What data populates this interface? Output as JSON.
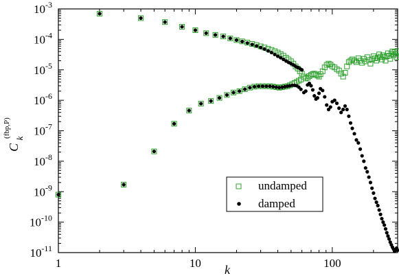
{
  "chart_data": {
    "type": "scatter",
    "title": "",
    "xlabel": "k",
    "ylabel": {
      "main": "C",
      "subscript": "k",
      "superscript": "(fbp,P)"
    },
    "x_scale": "log",
    "y_scale": "log",
    "xlim": [
      1,
      300
    ],
    "ylim": [
      1e-11,
      0.001
    ],
    "x_ticks": [
      {
        "value": 1,
        "label": "1"
      },
      {
        "value": 10,
        "label": "10"
      },
      {
        "value": 100,
        "label": "100"
      }
    ],
    "y_ticks": [
      {
        "value": 0.001,
        "base": "10",
        "exp": "-3"
      },
      {
        "value": 0.0001,
        "base": "10",
        "exp": "-4"
      },
      {
        "value": 1e-05,
        "base": "10",
        "exp": "-5"
      },
      {
        "value": 1e-06,
        "base": "10",
        "exp": "-6"
      },
      {
        "value": 1e-07,
        "base": "10",
        "exp": "-7"
      },
      {
        "value": 1e-08,
        "base": "10",
        "exp": "-8"
      },
      {
        "value": 1e-09,
        "base": "10",
        "exp": "-9"
      },
      {
        "value": 1e-10,
        "base": "10",
        "exp": "-10"
      },
      {
        "value": 1e-11,
        "base": "10",
        "exp": "-11"
      }
    ],
    "grid": false,
    "legend_position": "lower-right",
    "series": [
      {
        "name": "undamped",
        "marker": "open-square",
        "color": "#2ca02c",
        "points": [
          [
            1,
            8e-10
          ],
          [
            2,
            0.0007
          ],
          [
            3,
            1.7e-09
          ],
          [
            4,
            0.0005
          ],
          [
            5,
            2.1e-08
          ],
          [
            6,
            0.00037
          ],
          [
            7,
            1.7e-07
          ],
          [
            8,
            0.00026
          ],
          [
            9,
            4.6e-07
          ],
          [
            10,
            0.0002
          ],
          [
            11,
            7.8e-07
          ],
          [
            12,
            0.00016
          ],
          [
            13,
            9.5e-07
          ],
          [
            14,
            0.00014
          ],
          [
            15,
            1.2e-06
          ],
          [
            16,
            0.000125
          ],
          [
            17,
            1.5e-06
          ],
          [
            18,
            0.000108
          ],
          [
            19,
            1.8e-06
          ],
          [
            20,
            9.5e-05
          ],
          [
            21,
            2e-06
          ],
          [
            22,
            8.6e-05
          ],
          [
            23,
            2.3e-06
          ],
          [
            24,
            7.8e-05
          ],
          [
            25,
            2.6e-06
          ],
          [
            26,
            7.1e-05
          ],
          [
            27,
            2.8e-06
          ],
          [
            28,
            6.5e-05
          ],
          [
            29,
            2.9e-06
          ],
          [
            30,
            5.9e-05
          ],
          [
            31,
            2.9e-06
          ],
          [
            32,
            5.4e-05
          ],
          [
            33,
            2.9e-06
          ],
          [
            34,
            4.9e-05
          ],
          [
            35,
            2.9e-06
          ],
          [
            36,
            4.5e-05
          ],
          [
            37,
            2.8e-06
          ],
          [
            38,
            4.1e-05
          ],
          [
            39,
            2.7e-06
          ],
          [
            40,
            3.7e-05
          ],
          [
            41,
            2.6e-06
          ],
          [
            42,
            3.3e-05
          ],
          [
            43,
            2.7e-06
          ],
          [
            44,
            2.9e-05
          ],
          [
            45,
            2.8e-06
          ],
          [
            46,
            2.5e-05
          ],
          [
            47,
            2.9e-06
          ],
          [
            48,
            2.2e-05
          ],
          [
            49,
            3.1e-06
          ],
          [
            50,
            1.9e-05
          ],
          [
            51,
            3.4e-06
          ],
          [
            52,
            1.6e-05
          ],
          [
            53,
            3.7e-06
          ],
          [
            54,
            1.3e-05
          ],
          [
            55,
            4e-06
          ],
          [
            56,
            1.1e-05
          ],
          [
            57,
            4.4e-06
          ],
          [
            58,
            9e-06
          ],
          [
            59,
            4.8e-06
          ],
          [
            60,
            7.5e-06
          ],
          [
            62,
            6e-06
          ],
          [
            64,
            5.2e-06
          ],
          [
            66,
            5.5e-06
          ],
          [
            68,
            6.2e-06
          ],
          [
            70,
            6.8e-06
          ],
          [
            72,
            7.3e-06
          ],
          [
            74,
            7.5e-06
          ],
          [
            76,
            7e-06
          ],
          [
            78,
            6.5e-06
          ],
          [
            80,
            6e-06
          ],
          [
            82,
            7.2e-06
          ],
          [
            85,
            9e-06
          ],
          [
            88,
            1.2e-05
          ],
          [
            91,
            1.45e-05
          ],
          [
            94,
            1.6e-05
          ],
          [
            97,
            1.5e-05
          ],
          [
            100,
            1.3e-05
          ],
          [
            104,
            1.2e-05
          ],
          [
            108,
            1.05e-05
          ],
          [
            112,
            9.5e-06
          ],
          [
            116,
            7.5e-06
          ],
          [
            120,
            6e-06
          ],
          [
            124,
            8e-06
          ],
          [
            128,
            1.3e-05
          ],
          [
            132,
            1.8e-05
          ],
          [
            136,
            2e-05
          ],
          [
            140,
            2.2e-05
          ],
          [
            145,
            2e-05
          ],
          [
            150,
            1.8e-05
          ],
          [
            155,
            2.4e-05
          ],
          [
            160,
            2e-05
          ],
          [
            165,
            1.7e-05
          ],
          [
            170,
            2.3e-05
          ],
          [
            175,
            1.9e-05
          ],
          [
            180,
            2.6e-05
          ],
          [
            185,
            2.1e-05
          ],
          [
            190,
            1.6e-05
          ],
          [
            195,
            2.2e-05
          ],
          [
            200,
            2.8e-05
          ],
          [
            205,
            2.4e-05
          ],
          [
            210,
            2e-05
          ],
          [
            215,
            2.5e-05
          ],
          [
            220,
            3.2e-05
          ],
          [
            225,
            2.7e-05
          ],
          [
            230,
            2.2e-05
          ],
          [
            235,
            3e-05
          ],
          [
            240,
            2.6e-05
          ],
          [
            245,
            2e-05
          ],
          [
            250,
            2.8e-05
          ],
          [
            255,
            3.5e-05
          ],
          [
            260,
            2.9e-05
          ],
          [
            265,
            2.3e-05
          ],
          [
            270,
            3.4e-05
          ],
          [
            275,
            4e-05
          ],
          [
            280,
            3e-05
          ],
          [
            285,
            3.8e-05
          ],
          [
            290,
            3.3e-05
          ],
          [
            295,
            2.6e-05
          ],
          [
            300,
            4.1e-05
          ]
        ]
      },
      {
        "name": "damped",
        "marker": "filled-circle",
        "color": "#000000",
        "points": [
          [
            1,
            8e-10
          ],
          [
            2,
            0.0007
          ],
          [
            3,
            1.7e-09
          ],
          [
            4,
            0.0005
          ],
          [
            5,
            2.1e-08
          ],
          [
            6,
            0.00037
          ],
          [
            7,
            1.7e-07
          ],
          [
            8,
            0.00026
          ],
          [
            9,
            4.6e-07
          ],
          [
            10,
            0.0002
          ],
          [
            11,
            7.8e-07
          ],
          [
            12,
            0.00016
          ],
          [
            13,
            9.5e-07
          ],
          [
            14,
            0.00014
          ],
          [
            15,
            1.2e-06
          ],
          [
            16,
            0.000125
          ],
          [
            17,
            1.5e-06
          ],
          [
            18,
            0.000108
          ],
          [
            19,
            1.8e-06
          ],
          [
            20,
            9.5e-05
          ],
          [
            21,
            2e-06
          ],
          [
            22,
            8.5e-05
          ],
          [
            23,
            2.3e-06
          ],
          [
            24,
            7.6e-05
          ],
          [
            25,
            2.6e-06
          ],
          [
            26,
            6.8e-05
          ],
          [
            27,
            2.8e-06
          ],
          [
            28,
            6.1e-05
          ],
          [
            29,
            2.9e-06
          ],
          [
            30,
            5.4e-05
          ],
          [
            31,
            2.9e-06
          ],
          [
            32,
            4.8e-05
          ],
          [
            33,
            2.9e-06
          ],
          [
            34,
            4.2e-05
          ],
          [
            35,
            2.9e-06
          ],
          [
            36,
            3.7e-05
          ],
          [
            37,
            2.8e-06
          ],
          [
            38,
            3.2e-05
          ],
          [
            39,
            2.7e-06
          ],
          [
            40,
            2.8e-05
          ],
          [
            41,
            2.6e-06
          ],
          [
            42,
            2.5e-05
          ],
          [
            43,
            2.7e-06
          ],
          [
            44,
            2.2e-05
          ],
          [
            45,
            2.8e-06
          ],
          [
            46,
            1.95e-05
          ],
          [
            47,
            2.9e-06
          ],
          [
            48,
            1.75e-05
          ],
          [
            49,
            3e-06
          ],
          [
            50,
            1.6e-05
          ],
          [
            51,
            3.1e-06
          ],
          [
            52,
            1.45e-05
          ],
          [
            53,
            3.1e-06
          ],
          [
            54,
            1.3e-05
          ],
          [
            55,
            3e-06
          ],
          [
            56,
            1.2e-05
          ],
          [
            57,
            2.7e-06
          ],
          [
            58,
            1.1e-05
          ],
          [
            59,
            2.3e-06
          ],
          [
            60,
            1e-05
          ],
          [
            62,
            1.8e-06
          ],
          [
            64,
            2e-06
          ],
          [
            66,
            3.2e-06
          ],
          [
            68,
            3.6e-06
          ],
          [
            70,
            3e-06
          ],
          [
            72,
            2.2e-06
          ],
          [
            74,
            1.4e-06
          ],
          [
            76,
            1.1e-06
          ],
          [
            78,
            1.2e-06
          ],
          [
            80,
            1.7e-06
          ],
          [
            82,
            2.4e-06
          ],
          [
            85,
            2.1e-06
          ],
          [
            88,
            1.3e-06
          ],
          [
            91,
            7e-07
          ],
          [
            94,
            5e-07
          ],
          [
            97,
            6e-07
          ],
          [
            100,
            9e-07
          ],
          [
            104,
            1e-06
          ],
          [
            108,
            8e-07
          ],
          [
            112,
            5.5e-07
          ],
          [
            116,
            4e-07
          ],
          [
            120,
            5e-07
          ],
          [
            124,
            6.5e-07
          ],
          [
            128,
            5e-07
          ],
          [
            132,
            3e-07
          ],
          [
            136,
            1.8e-07
          ],
          [
            140,
            1.2e-07
          ],
          [
            145,
            8e-08
          ],
          [
            150,
            5e-08
          ],
          [
            155,
            4e-08
          ],
          [
            160,
            2.5e-08
          ],
          [
            165,
            1.5e-08
          ],
          [
            170,
            1e-08
          ],
          [
            175,
            6e-09
          ],
          [
            180,
            4.5e-09
          ],
          [
            185,
            3e-09
          ],
          [
            190,
            2e-09
          ],
          [
            195,
            1.3e-09
          ],
          [
            200,
            9e-10
          ],
          [
            205,
            6e-10
          ],
          [
            210,
            4.5e-10
          ],
          [
            215,
            3.5e-10
          ],
          [
            220,
            2.5e-10
          ],
          [
            225,
            1.8e-10
          ],
          [
            230,
            1.3e-10
          ],
          [
            235,
            1e-10
          ],
          [
            240,
            8e-11
          ],
          [
            245,
            6e-11
          ],
          [
            250,
            4.5e-11
          ],
          [
            255,
            3.5e-11
          ],
          [
            260,
            2.8e-11
          ],
          [
            265,
            2.2e-11
          ],
          [
            270,
            1.8e-11
          ],
          [
            275,
            1.5e-11
          ],
          [
            280,
            1.3e-11
          ],
          [
            285,
            1.1e-11
          ],
          [
            290,
            1.2e-11
          ],
          [
            295,
            1.4e-11
          ],
          [
            300,
            1.2e-11
          ]
        ]
      }
    ]
  }
}
